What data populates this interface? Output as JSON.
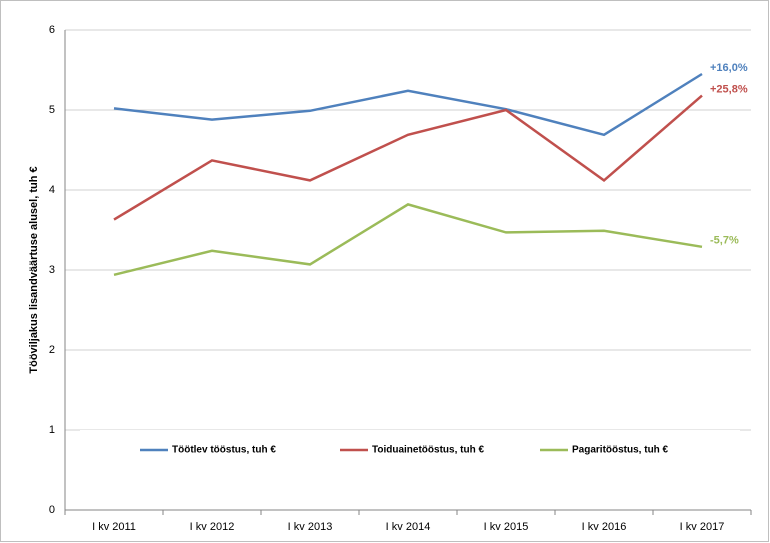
{
  "chart_data": {
    "type": "line",
    "y_label": "Tööviljakus lisandväärtuse alusel, tuh €",
    "categories": [
      "I kv 2011",
      "I kv 2012",
      "I kv 2013",
      "I kv 2014",
      "I kv 2015",
      "I kv 2016",
      "I kv 2017"
    ],
    "series": [
      {
        "name": "Töötlev tööstus, tuh €",
        "color": "#4f81bd",
        "values": [
          5.02,
          4.88,
          4.99,
          5.24,
          5.01,
          4.69,
          5.45
        ],
        "annotation": "+16,0%"
      },
      {
        "name": "Toiduainetööstus, tuh €",
        "color": "#c0504d",
        "values": [
          3.63,
          4.37,
          4.12,
          4.69,
          5.0,
          4.12,
          5.18
        ],
        "annotation": "+25,8%"
      },
      {
        "name": "Pagaritööstus, tuh €",
        "color": "#9bbb59",
        "values": [
          2.94,
          3.24,
          3.07,
          3.82,
          3.47,
          3.49,
          3.29
        ],
        "annotation": "-5,7%"
      }
    ],
    "ylim": [
      0,
      6
    ],
    "yticks": [
      0,
      1,
      2,
      3,
      4,
      5,
      6
    ],
    "grid": true
  }
}
